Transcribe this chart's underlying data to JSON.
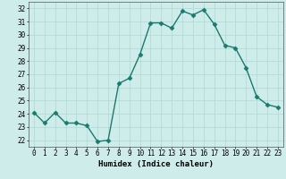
{
  "x": [
    0,
    1,
    2,
    3,
    4,
    5,
    6,
    7,
    8,
    9,
    10,
    11,
    12,
    13,
    14,
    15,
    16,
    17,
    18,
    19,
    20,
    21,
    22,
    23
  ],
  "y": [
    24.1,
    23.3,
    24.1,
    23.3,
    23.3,
    23.1,
    21.9,
    22.0,
    26.3,
    26.7,
    28.5,
    30.9,
    30.9,
    30.5,
    31.8,
    31.5,
    31.9,
    30.8,
    29.2,
    29.0,
    27.5,
    25.3,
    24.7,
    24.5
  ],
  "xlabel": "Humidex (Indice chaleur)",
  "xlim": [
    -0.5,
    23.5
  ],
  "ylim": [
    21.5,
    32.5
  ],
  "yticks": [
    22,
    23,
    24,
    25,
    26,
    27,
    28,
    29,
    30,
    31,
    32
  ],
  "xticks": [
    0,
    1,
    2,
    3,
    4,
    5,
    6,
    7,
    8,
    9,
    10,
    11,
    12,
    13,
    14,
    15,
    16,
    17,
    18,
    19,
    20,
    21,
    22,
    23
  ],
  "line_color": "#1a7a6e",
  "bg_color": "#ceecea",
  "grid_color": "#aed8d4",
  "marker": "D",
  "marker_size": 2.5,
  "line_width": 1.0,
  "label_fontsize": 6.5,
  "tick_fontsize": 5.5
}
